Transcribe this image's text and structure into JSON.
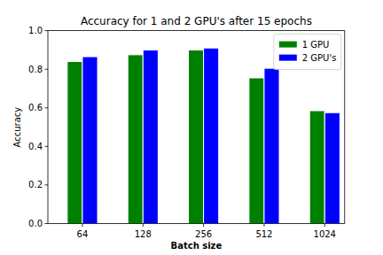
{
  "chart_data": {
    "type": "bar",
    "title": "Accuracy for 1 and 2 GPU's after 15 epochs",
    "x_label": "Batch size",
    "y_label": "Accuracy",
    "categories": [
      "64",
      "128",
      "256",
      "512",
      "1024"
    ],
    "series": [
      {
        "name": "1 GPU",
        "color": "#008000",
        "values": [
          0.84,
          0.875,
          0.9,
          0.755,
          0.585
        ]
      },
      {
        "name": "2 GPU's",
        "color": "#0000ff",
        "values": [
          0.865,
          0.9,
          0.91,
          0.805,
          0.575
        ]
      }
    ],
    "ylim": [
      0,
      1
    ],
    "yticks": [
      {
        "value": 0,
        "label": "0.0"
      },
      0.2,
      0.4,
      0.6,
      0.8,
      {
        "value": 1,
        "label": "1.0"
      }
    ],
    "grid": false,
    "legend": "upper right"
  }
}
